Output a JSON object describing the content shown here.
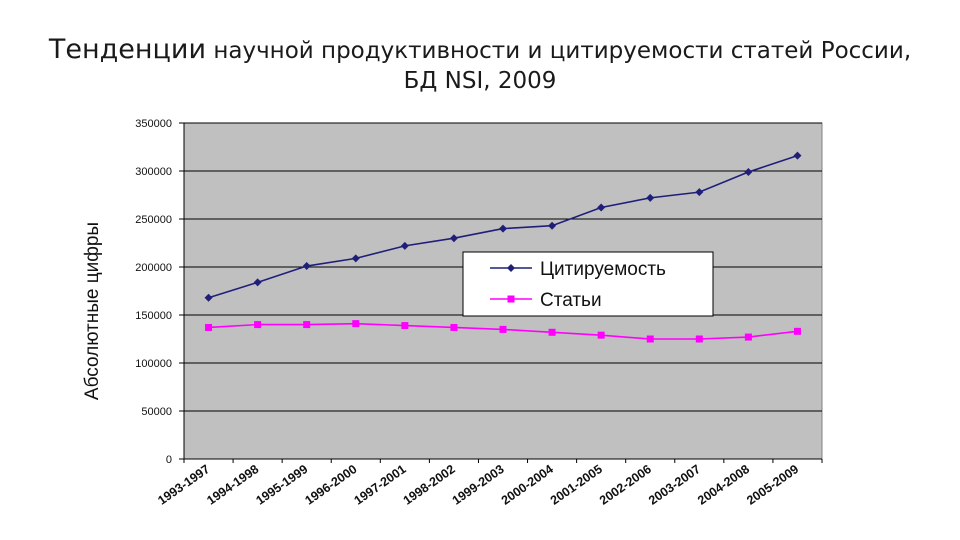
{
  "title": {
    "line1_lead": "Тенденции",
    "line1_rest": " научной продуктивности и цитируемости статей России,",
    "line2": "БД NSI, 2009"
  },
  "chart_data": {
    "type": "line",
    "ylabel": "Абсолютные цифры",
    "ylim": [
      0,
      350000
    ],
    "yticks": [
      "0",
      "50000",
      "100000",
      "150000",
      "200000",
      "250000",
      "300000",
      "350000"
    ],
    "categories": [
      "1993-1997",
      "1994-1998",
      "1995-1999",
      "1996-2000",
      "1997-2001",
      "1998-2002",
      "1999-2003",
      "2000-2004",
      "2001-2005",
      "2002-2006",
      "2003-2007",
      "2004-2008",
      "2005-2009"
    ],
    "series": [
      {
        "name": "Цитируемость",
        "color": "#1f1f7a",
        "marker": "diamond",
        "values": [
          168000,
          184000,
          201000,
          209000,
          222000,
          230000,
          240000,
          243000,
          262000,
          272000,
          278000,
          299000,
          316000
        ]
      },
      {
        "name": "Статьи",
        "color": "#ff00ff",
        "marker": "square",
        "values": [
          137000,
          140000,
          140000,
          141000,
          139000,
          137000,
          135000,
          132000,
          129000,
          125000,
          125000,
          127000,
          133000
        ]
      }
    ],
    "grid": true,
    "plot_background": "#c0c0c0",
    "legend": "inside-right"
  }
}
